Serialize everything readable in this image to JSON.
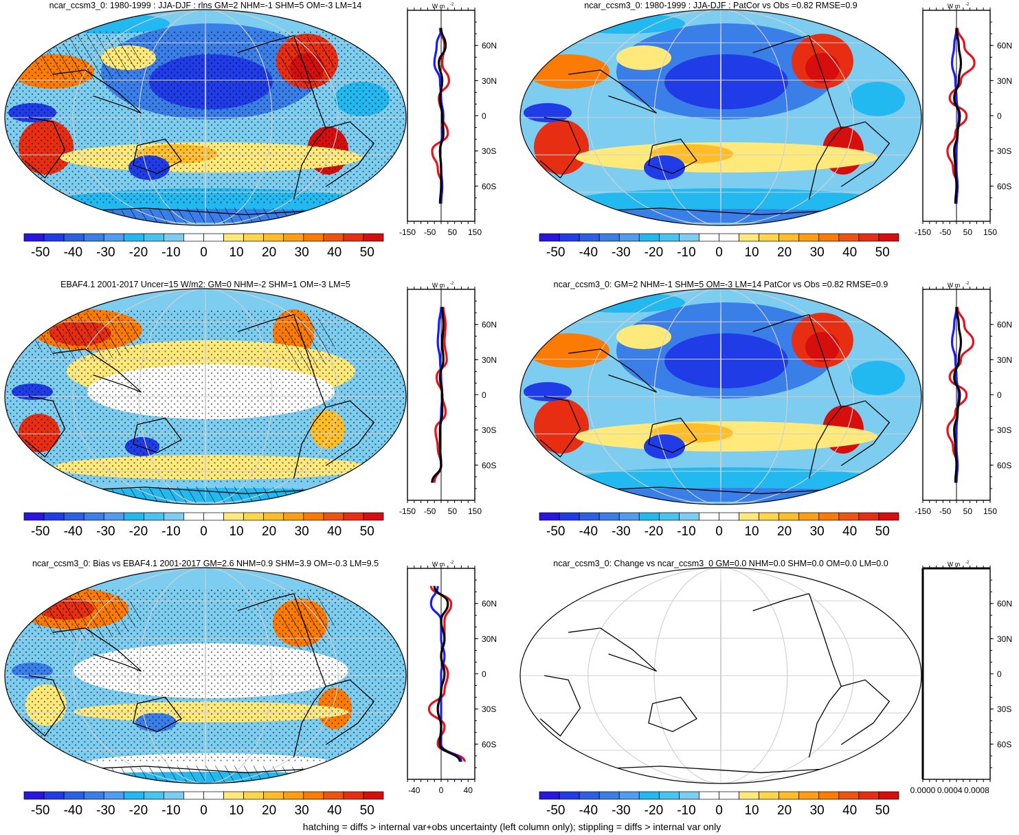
{
  "figure": {
    "footnote": "hatching = diffs > internal var+obs uncertainty (left column only); stippling = diffs > internal var only",
    "colorbar_ticks": [
      "-50",
      "-40",
      "-30",
      "-20",
      "-10",
      "0",
      "10",
      "20",
      "30",
      "40",
      "50"
    ],
    "colorbar_colors": [
      "#2a14e0",
      "#1f3ce6",
      "#2a5fe6",
      "#3a7ee8",
      "#4f9cf0",
      "#22b8f0",
      "#48c4f0",
      "#7ccdf0",
      "#ffffff",
      "#ffffff",
      "#ffe97a",
      "#ffd54a",
      "#ffbe27",
      "#ff9e10",
      "#fb7b05",
      "#ee5410",
      "#e82e12",
      "#d60e0e"
    ],
    "lat_labels": [
      "60N",
      "30N",
      "0",
      "30S",
      "60S"
    ],
    "zonal_unit": "W m",
    "zonal_unit_sup": "-2"
  },
  "panels": [
    {
      "title": "ncar_ccsm3_0: 1980-1999 : JJA-DJF : rlns GM=2 NHM=-1 SHM=5 OM=-3 LM=14",
      "map_style": "model",
      "hatch": true,
      "stipple": true,
      "zonal": {
        "xlim": [
          -150,
          150
        ],
        "xticks": [
          "-150",
          "-50",
          "50",
          "150"
        ],
        "latitudes": [
          75,
          60,
          45,
          30,
          15,
          0,
          -15,
          -30,
          -45,
          -60,
          -75
        ],
        "series": [
          {
            "name": "ocean",
            "color": "#e8101a",
            "values": [
              -5,
              15,
              5,
              35,
              -10,
              5,
              30,
              -40,
              -15,
              5,
              0
            ]
          },
          {
            "name": "land",
            "color": "#1a1aff",
            "values": [
              0,
              -20,
              -30,
              -5,
              0,
              10,
              5,
              -5,
              0,
              5,
              0
            ]
          },
          {
            "name": "zonal mean",
            "color": "#000000",
            "values": [
              0,
              20,
              -10,
              5,
              -5,
              5,
              10,
              -5,
              0,
              0,
              -5
            ]
          }
        ]
      }
    },
    {
      "title": "ncar_ccsm3_0: 1980-1999 : JJA-DJF : PatCor vs Obs =0.82 RMSE=0.9",
      "map_style": "model",
      "hatch": false,
      "stipple": false,
      "zonal": {
        "xlim": [
          -150,
          150
        ],
        "xticks": [
          "-150",
          "-50",
          "50",
          "150"
        ],
        "latitudes": [
          75,
          60,
          45,
          30,
          15,
          0,
          -15,
          -30,
          -45,
          -60,
          -75
        ],
        "series": [
          {
            "name": "ocean",
            "color": "#e8101a",
            "values": [
              5,
              35,
              80,
              20,
              -30,
              45,
              -5,
              -40,
              -15,
              5,
              0
            ]
          },
          {
            "name": "land",
            "color": "#1a1aff",
            "values": [
              0,
              -10,
              -20,
              -5,
              0,
              10,
              5,
              0,
              0,
              5,
              0
            ]
          },
          {
            "name": "zonal mean",
            "color": "#000000",
            "values": [
              0,
              10,
              20,
              10,
              -10,
              15,
              5,
              -10,
              -5,
              0,
              -5
            ]
          }
        ]
      }
    },
    {
      "title": "EBAF4.1 2001-2017 Uncer=15 W/m2: GM=0 NHM=-2 SHM=1 OM=-3 LM=5",
      "map_style": "obs",
      "hatch": true,
      "stipple": true,
      "zonal": {
        "xlim": [
          -150,
          150
        ],
        "xticks": [
          "-150",
          "-50",
          "50",
          "150"
        ],
        "latitudes": [
          75,
          60,
          45,
          30,
          15,
          0,
          -15,
          -30,
          -45,
          -60,
          -75
        ],
        "series": [
          {
            "name": "ocean",
            "color": "#e8101a",
            "values": [
              10,
              20,
              15,
              25,
              -20,
              5,
              20,
              -25,
              -15,
              0,
              -30
            ]
          },
          {
            "name": "land",
            "color": "#1a1aff",
            "values": [
              0,
              -10,
              -15,
              -5,
              0,
              5,
              0,
              -5,
              -5,
              0,
              -40
            ]
          },
          {
            "name": "zonal mean",
            "color": "#000000",
            "values": [
              5,
              10,
              5,
              10,
              -5,
              5,
              5,
              -5,
              -5,
              0,
              -40
            ]
          }
        ]
      }
    },
    {
      "title": "ncar_ccsm3_0: GM=2 NHM=-1 SHM=5 OM=-3 LM=14 PatCor vs Obs =0.82 RMSE=0.9",
      "map_style": "model",
      "hatch": false,
      "stipple": false,
      "zonal": {
        "xlim": [
          -150,
          150
        ],
        "xticks": [
          "-150",
          "-50",
          "50",
          "150"
        ],
        "latitudes": [
          75,
          60,
          45,
          30,
          15,
          0,
          -15,
          -30,
          -45,
          -60,
          -75
        ],
        "series": [
          {
            "name": "ocean",
            "color": "#e8101a",
            "values": [
              5,
              35,
              75,
              20,
              -30,
              45,
              -5,
              -40,
              -15,
              5,
              0
            ]
          },
          {
            "name": "land",
            "color": "#1a1aff",
            "values": [
              0,
              -10,
              -20,
              -5,
              0,
              10,
              5,
              0,
              0,
              5,
              0
            ]
          },
          {
            "name": "zonal mean",
            "color": "#000000",
            "values": [
              0,
              10,
              20,
              10,
              -10,
              15,
              5,
              -10,
              -5,
              0,
              -5
            ]
          }
        ]
      }
    },
    {
      "title": "ncar_ccsm3_0: Bias vs EBAF4.1 2001-2017 GM=2.6 NHM=0.9 SHM=3.9 OM=-0.3 LM=9.5",
      "map_style": "bias",
      "hatch": true,
      "stipple": true,
      "zonal": {
        "xlim": [
          -50,
          50
        ],
        "xticks": [
          "-40",
          "0",
          "40"
        ],
        "latitudes": [
          75,
          60,
          45,
          30,
          15,
          0,
          -15,
          -30,
          -45,
          -60,
          -75
        ],
        "series": [
          {
            "name": "ocean",
            "color": "#e8101a",
            "values": [
              -15,
              15,
              5,
              5,
              0,
              10,
              5,
              -18,
              5,
              -5,
              35
            ]
          },
          {
            "name": "land",
            "color": "#1a1aff",
            "values": [
              -5,
              -15,
              0,
              0,
              5,
              0,
              0,
              0,
              0,
              0,
              30
            ]
          },
          {
            "name": "zonal mean",
            "color": "#000000",
            "values": [
              -10,
              10,
              0,
              5,
              0,
              5,
              0,
              -5,
              0,
              -2,
              28
            ]
          }
        ]
      }
    },
    {
      "title": "ncar_ccsm3_0: Change vs ncar_ccsm3_0 GM=0.0 NHM=0.0 SHM=0.0 OM=0.0 LM=0.0",
      "map_style": "blank",
      "hatch": false,
      "stipple": false,
      "zonal": {
        "xlim": [
          0,
          0.001
        ],
        "xticks": [
          "0.0000",
          "0.0004",
          "0.0008"
        ],
        "latitudes": [
          75,
          60,
          45,
          30,
          15,
          0,
          -15,
          -30,
          -45,
          -60,
          -75
        ],
        "series": [
          {
            "name": "zonal mean",
            "color": "#000000",
            "values": [
              0,
              0,
              0,
              0,
              0,
              0,
              0,
              0,
              0,
              0,
              0
            ]
          }
        ]
      }
    }
  ],
  "chart_data": [
    {
      "type": "heatmap",
      "title": "ncar_ccsm3_0: 1980-1999 : JJA-DJF : rlns GM=2 NHM=-1 SHM=5 OM=-3 LM=14",
      "colorbar_range": [
        -55,
        55
      ]
    },
    {
      "type": "heatmap",
      "title": "ncar_ccsm3_0: 1980-1999 : JJA-DJF : PatCor vs Obs =0.82 RMSE=0.9",
      "colorbar_range": [
        -55,
        55
      ]
    },
    {
      "type": "heatmap",
      "title": "EBAF4.1 2001-2017 Uncer=15 W/m2: GM=0 NHM=-2 SHM=1 OM=-3 LM=5",
      "colorbar_range": [
        -55,
        55
      ]
    },
    {
      "type": "heatmap",
      "title": "ncar_ccsm3_0: GM=2 NHM=-1 SHM=5 OM=-3 LM=14 PatCor vs Obs =0.82 RMSE=0.9",
      "colorbar_range": [
        -55,
        55
      ]
    },
    {
      "type": "heatmap",
      "title": "ncar_ccsm3_0: Bias vs EBAF4.1 2001-2017 GM=2.6 NHM=0.9 SHM=3.9 OM=-0.3 LM=9.5",
      "colorbar_range": [
        -55,
        55
      ]
    },
    {
      "type": "heatmap",
      "title": "ncar_ccsm3_0: Change vs ncar_ccsm3_0 GM=0.0 NHM=0.0 SHM=0.0 OM=0.0 LM=0.0",
      "colorbar_range": [
        -55,
        55
      ]
    }
  ]
}
